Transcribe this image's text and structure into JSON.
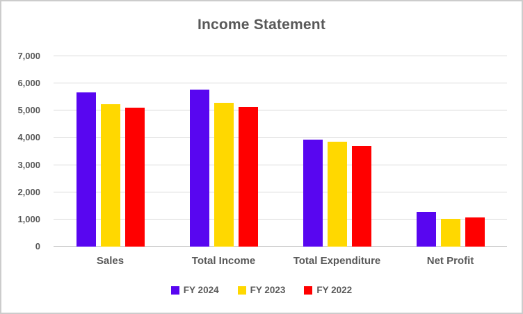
{
  "window": {
    "background": "#FFFFFF",
    "border_color": "#CCCCCC"
  },
  "chart_data": {
    "type": "bar",
    "title": "Income Statement",
    "categories": [
      "Sales",
      "Total Income",
      "Total Expenditure",
      "Net Profit"
    ],
    "series": [
      {
        "name": "FY 2024",
        "color": "#5806F0",
        "values": [
          5680,
          5780,
          3930,
          1280
        ]
      },
      {
        "name": "FY 2023",
        "color": "#FFD800",
        "values": [
          5240,
          5290,
          3860,
          1030
        ]
      },
      {
        "name": "FY 2022",
        "color": "#FF0000",
        "values": [
          5100,
          5130,
          3700,
          1070
        ]
      }
    ],
    "xlabel": "",
    "ylabel": "",
    "ylim": [
      0,
      7000
    ],
    "y_ticks": [
      0,
      1000,
      2000,
      3000,
      4000,
      5000,
      6000,
      7000
    ],
    "y_tick_labels": [
      "0",
      "1,000",
      "2,000",
      "3,000",
      "4,000",
      "5,000",
      "6,000",
      "7,000"
    ],
    "grid": true,
    "legend_position": "bottom",
    "title_color": "#595959",
    "label_color": "#595959",
    "gridline_color": "#D9D9D9",
    "axis_line_color": "#BFBFBF"
  }
}
